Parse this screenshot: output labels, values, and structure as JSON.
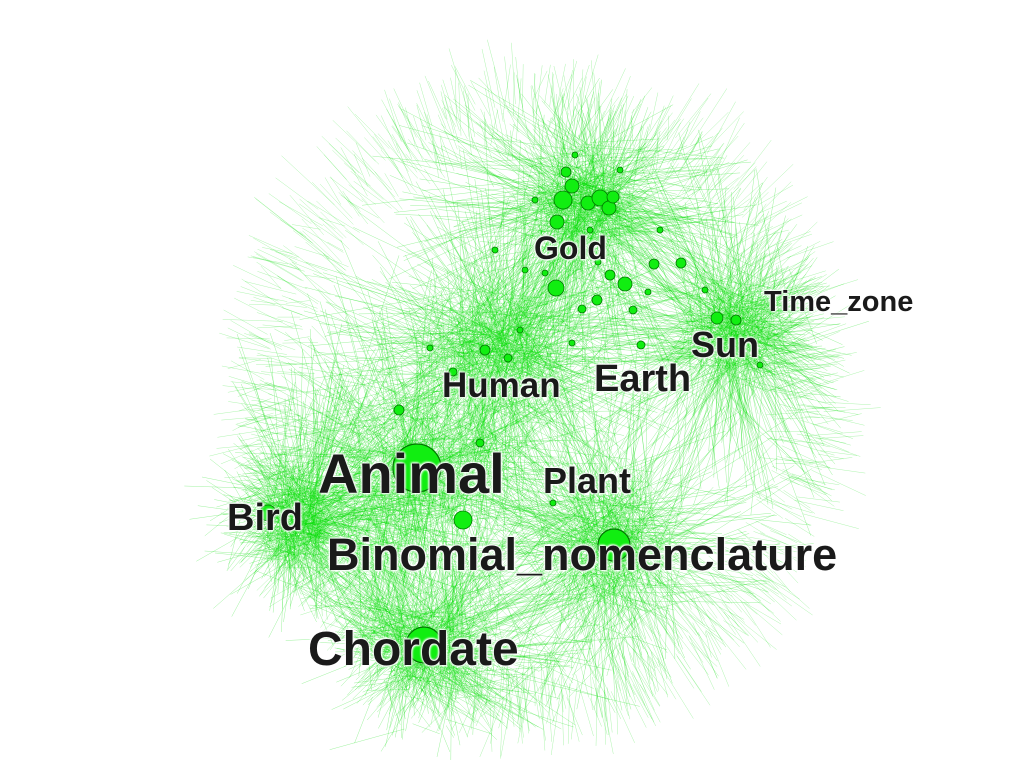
{
  "graph": {
    "edge_color": "#00dd00",
    "node_fill": "#11ee11",
    "node_stroke": "#007700",
    "labels": {
      "gold": "Gold",
      "time_zone": "Time_zone",
      "sun": "Sun",
      "human": "Human",
      "earth": "Earth",
      "animal": "Animal",
      "plant": "Plant",
      "bird": "Bird",
      "binomial_nomenclature": "Binomial_nomenclature",
      "chordate": "Chordate"
    }
  }
}
